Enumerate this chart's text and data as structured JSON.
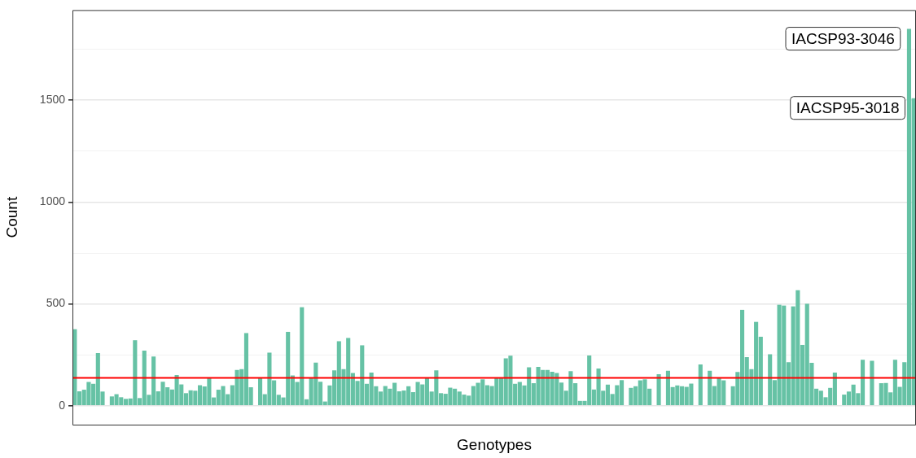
{
  "chart_data": {
    "type": "bar",
    "xlabel": "Genotypes",
    "ylabel": "Count",
    "categories": [
      null,
      null,
      null,
      null,
      null,
      null,
      null,
      null,
      null,
      null,
      null,
      null,
      null,
      null,
      null,
      null,
      null,
      null,
      null,
      null,
      null,
      null,
      null,
      null,
      null,
      null,
      null,
      null,
      null,
      null,
      null,
      null,
      null,
      null,
      null,
      null,
      null,
      null,
      null,
      null,
      null,
      null,
      null,
      null,
      null,
      null,
      null,
      null,
      null,
      null,
      null,
      null,
      null,
      null,
      null,
      null,
      null,
      null,
      null,
      null,
      null,
      null,
      null,
      null,
      null,
      null,
      null,
      null,
      null,
      null,
      null,
      null,
      null,
      null,
      null,
      null,
      null,
      null,
      null,
      null,
      null,
      null,
      null,
      null,
      null,
      null,
      null,
      null,
      null,
      null,
      null,
      null,
      null,
      null,
      null,
      null,
      null,
      null,
      null,
      null,
      null,
      null,
      null,
      null,
      null,
      null,
      null,
      null,
      null,
      null,
      null,
      null,
      null,
      null,
      null,
      null,
      null,
      null,
      null,
      null,
      null,
      null,
      null,
      null,
      null,
      null,
      null,
      null,
      null,
      null,
      null,
      null,
      null,
      null,
      null,
      null,
      null,
      null,
      null,
      null,
      null,
      null,
      null,
      null,
      null,
      null,
      null,
      null,
      null,
      null,
      null,
      null,
      null,
      null,
      null,
      null,
      null,
      null,
      null,
      null,
      null,
      null,
      null,
      null,
      null,
      null,
      null,
      null,
      null,
      null,
      null,
      null,
      null,
      null,
      null,
      null,
      null,
      null,
      null,
      null,
      null,
      null
    ],
    "values": [
      376,
      71,
      79,
      117,
      108,
      259,
      70,
      null,
      46,
      57,
      42,
      34,
      36,
      322,
      38,
      271,
      54,
      242,
      71,
      118,
      91,
      80,
      151,
      105,
      62,
      76,
      74,
      101,
      95,
      136,
      41,
      79,
      97,
      57,
      101,
      176,
      180,
      357,
      91,
      null,
      136,
      57,
      261,
      125,
      54,
      41,
      363,
      149,
      117,
      484,
      32,
      136,
      212,
      118,
      21,
      100,
      174,
      317,
      180,
      333,
      161,
      122,
      297,
      108,
      163,
      96,
      70,
      97,
      84,
      113,
      71,
      75,
      96,
      67,
      117,
      105,
      136,
      70,
      174,
      62,
      59,
      89,
      84,
      70,
      55,
      50,
      97,
      113,
      130,
      101,
      97,
      136,
      136,
      233,
      246,
      108,
      117,
      100,
      189,
      111,
      191,
      176,
      176,
      167,
      161,
      114,
      74,
      170,
      111,
      24,
      24,
      247,
      80,
      183,
      74,
      104,
      58,
      101,
      126,
      null,
      88,
      96,
      125,
      130,
      84,
      null,
      155,
      null,
      172,
      92,
      100,
      96,
      93,
      109,
      null,
      203,
      null,
      172,
      97,
      136,
      125,
      null,
      96,
      166,
      471,
      239,
      180,
      412,
      339,
      null,
      253,
      126,
      496,
      492,
      214,
      488,
      567,
      299,
      501,
      211,
      84,
      74,
      42,
      88,
      163,
      null,
      55,
      70,
      104,
      62,
      226,
      null,
      221,
      null,
      111,
      112,
      66,
      226,
      93,
      214,
      1850,
      1510
    ],
    "color": "#66c2a5",
    "ylim": [
      -92.5,
      1942.5
    ],
    "yticks": [
      0,
      {
        "value": 250,
        "label": null
      },
      500,
      {
        "value": 750,
        "label": null
      },
      1000,
      {
        "value": 1250,
        "label": null
      },
      1500,
      {
        "value": 1750,
        "label": null
      }
    ],
    "grid": "y",
    "tick_labels": "y",
    "ref_lines": [
      {
        "axis": "y",
        "value": 137,
        "color": "#ff0000"
      }
    ],
    "annotations": [
      "IACSP93-3046",
      "IACSP95-3018"
    ]
  }
}
